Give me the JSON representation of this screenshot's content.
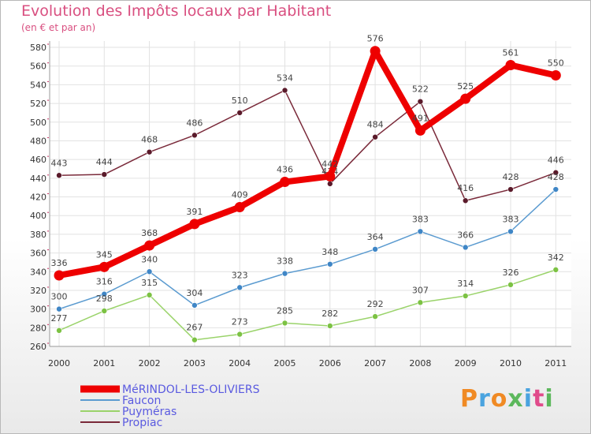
{
  "chart_data": {
    "type": "line",
    "title": "Evolution des Impôts locaux par Habitant",
    "subtitle": "(en € et par an)",
    "categories": [
      "2000",
      "2001",
      "2002",
      "2003",
      "2004",
      "2005",
      "2006",
      "2007",
      "2008",
      "2009",
      "2010",
      "2011"
    ],
    "yticks": [
      260,
      280,
      300,
      320,
      340,
      360,
      380,
      400,
      420,
      440,
      460,
      480,
      500,
      520,
      540,
      560,
      580
    ],
    "ylim": [
      260,
      580
    ],
    "series": [
      {
        "name": "Propiac",
        "color": "#7a2a3a",
        "marker": "#5a1a2a",
        "values": [
          443,
          444,
          468,
          486,
          510,
          534,
          434,
          484,
          522,
          416,
          428,
          446
        ],
        "labels": [
          "443",
          "444",
          "468",
          "486",
          "510",
          "534",
          "434",
          "484",
          "522",
          "416",
          "428",
          "446"
        ]
      },
      {
        "name": "Faucon",
        "color": "#5b9bd0",
        "marker": "#3f86c6",
        "values": [
          300,
          316,
          340,
          304,
          323,
          338,
          348,
          364,
          383,
          366,
          383,
          428
        ],
        "labels": [
          "300",
          "316",
          "340",
          "304",
          "323",
          "338",
          "348",
          "364",
          "383",
          "366",
          "383",
          "428"
        ]
      },
      {
        "name": "Puyméras",
        "color": "#9ad36a",
        "marker": "#7cc243",
        "values": [
          277,
          298,
          315,
          267,
          273,
          285,
          282,
          292,
          307,
          314,
          326,
          342
        ],
        "labels": [
          "277",
          "298",
          "315",
          "267",
          "273",
          "285",
          "282",
          "292",
          "307",
          "314",
          "326",
          "342"
        ]
      },
      {
        "name": "MéRINDOL-LES-OLIVIERS",
        "color": "#ee0000",
        "marker": "#ee0000",
        "values": [
          336,
          345,
          368,
          391,
          409,
          436,
          442,
          576,
          491,
          525,
          561,
          550
        ],
        "labels": [
          "336",
          "345",
          "368",
          "391",
          "409",
          "436",
          "442",
          "576",
          "491",
          "525",
          "561",
          "550"
        ]
      }
    ],
    "legend": [
      {
        "name": "MéRINDOL-LES-OLIVIERS",
        "color": "#ee0000"
      },
      {
        "name": "Faucon",
        "color": "#5b9bd0"
      },
      {
        "name": "Puyméras",
        "color": "#9ad36a"
      },
      {
        "name": "Propiac",
        "color": "#7a2a3a"
      }
    ],
    "legend_text_color": "#5a5ae0",
    "grid": true
  },
  "logo": {
    "letters": [
      "P",
      "r",
      "o",
      "x",
      "i",
      "t",
      "i"
    ],
    "colors": [
      "#f08a24",
      "#4aa3df",
      "#f08a24",
      "#5cb85c",
      "#4aa3df",
      "#e04b8b",
      "#5cb85c"
    ]
  }
}
